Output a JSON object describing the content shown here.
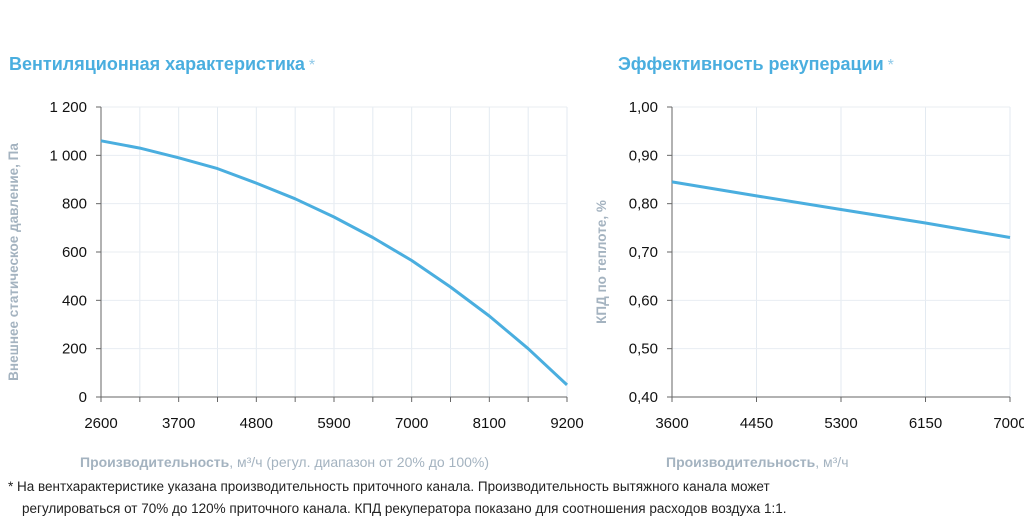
{
  "chart_data": [
    {
      "type": "line",
      "title": "Вентиляционная характеристика",
      "title_mark": "*",
      "xlabel_bold": "Производительность",
      "xlabel_unit": ", м³/ч",
      "xlabel_note": " (регул. диапазон от 20% до 100%)",
      "ylabel": "Внешнее статическое давление, Па",
      "xlim": [
        2600,
        9200
      ],
      "ylim": [
        0,
        1200
      ],
      "xticks": [
        "2600",
        "3700",
        "4800",
        "5900",
        "7000",
        "8100",
        "9200"
      ],
      "yticks": [
        "0",
        "200",
        "400",
        "600",
        "800",
        "1 000",
        "1 200"
      ],
      "grid": true,
      "color": "#4aaedf",
      "x": [
        2600,
        3150,
        3700,
        4250,
        4800,
        5350,
        5900,
        6450,
        7000,
        7550,
        8100,
        8650,
        9200
      ],
      "y": [
        1060,
        1030,
        990,
        945,
        885,
        820,
        745,
        660,
        565,
        455,
        335,
        200,
        50
      ]
    },
    {
      "type": "line",
      "title": "Эффективность рекуперации",
      "title_mark": "*",
      "xlabel_bold": "Производительность",
      "xlabel_unit": ", м³/ч",
      "ylabel": "КПД по теплоте, %",
      "xlim": [
        3600,
        7000
      ],
      "ylim": [
        0.4,
        1.0
      ],
      "xticks": [
        "3600",
        "4450",
        "5300",
        "6150",
        "7000"
      ],
      "yticks": [
        "0,40",
        "0,50",
        "0,60",
        "0,70",
        "0,80",
        "0,90",
        "1,00"
      ],
      "grid": true,
      "color": "#4aaedf",
      "x": [
        3600,
        4450,
        5300,
        6150,
        7000
      ],
      "y": [
        0.845,
        0.816,
        0.788,
        0.76,
        0.73
      ]
    }
  ],
  "footnote": {
    "line1": "* На вентхарактеристике указана производительность приточного канала. Производительность вытяжного канала может",
    "line2": "регулироваться от 70% до 120% приточного канала. КПД рекуператора показано для соотношения расходов воздуха 1:1."
  }
}
